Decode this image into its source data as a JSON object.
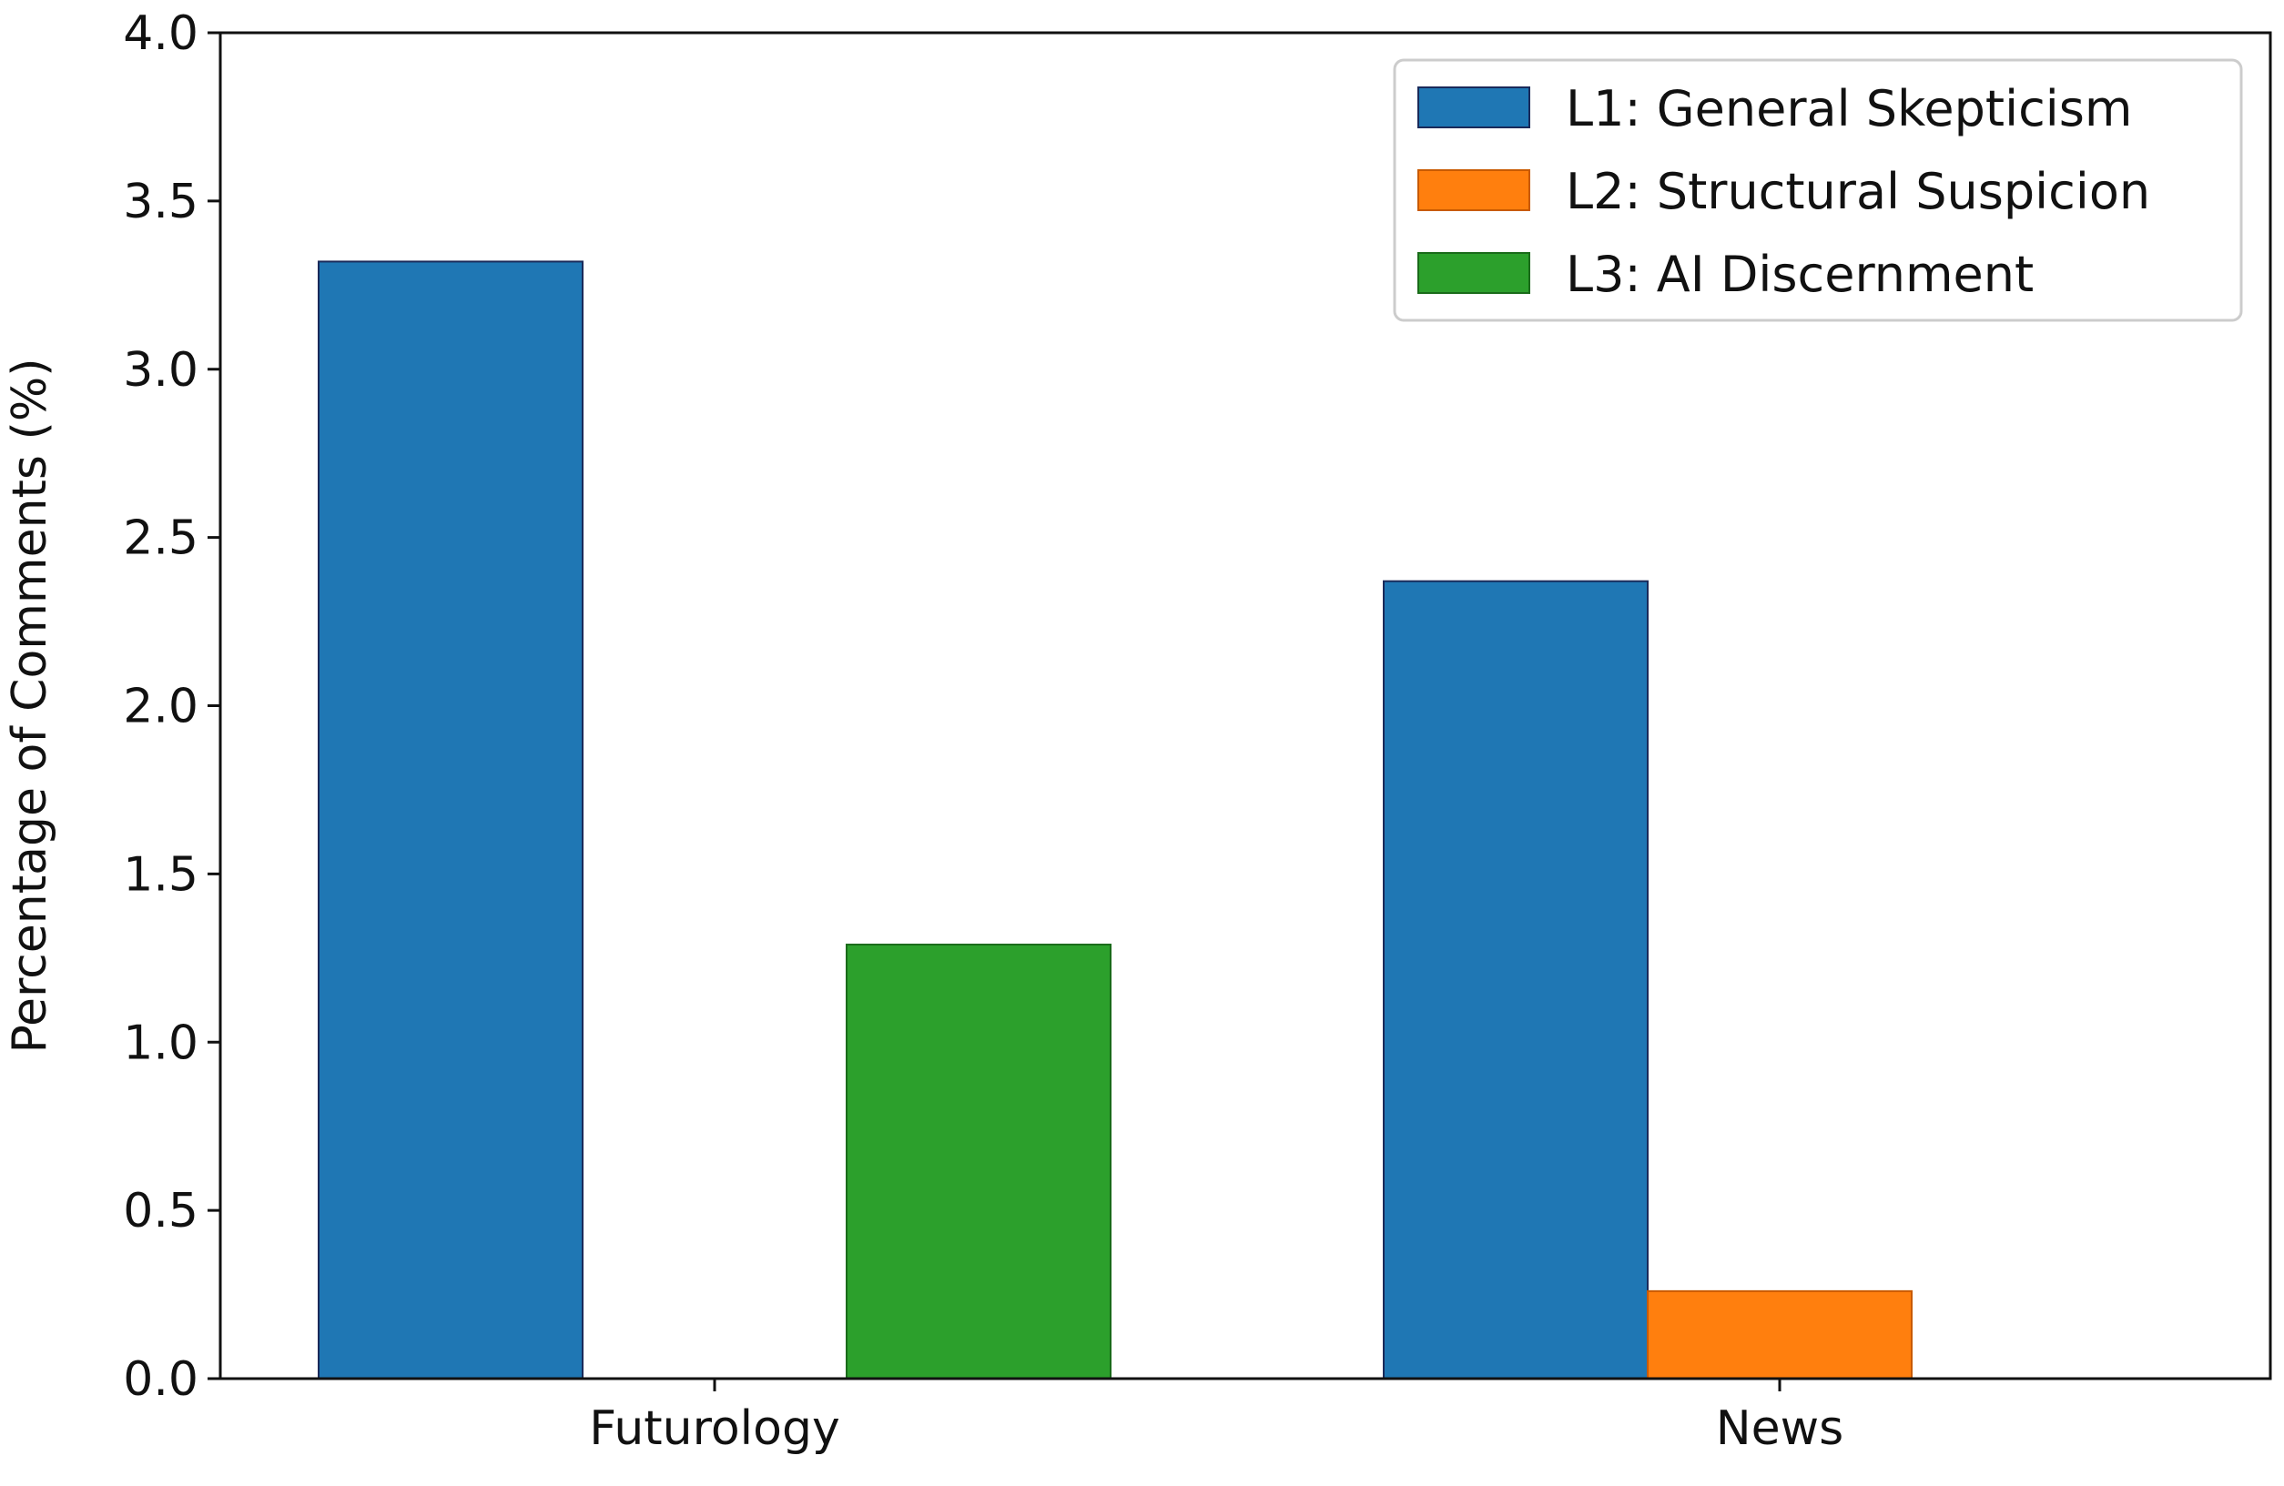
{
  "chart_data": {
    "type": "bar",
    "categories": [
      "Futurology",
      "News"
    ],
    "series": [
      {
        "name": "L1: General Skepticism",
        "color": "#1f77b4",
        "values": [
          3.32,
          2.37
        ]
      },
      {
        "name": "L2: Structural Suspicion",
        "color": "#ff7f0e",
        "values": [
          0.0,
          0.26
        ]
      },
      {
        "name": "L3: AI Discernment",
        "color": "#2ca02c",
        "values": [
          1.29,
          0.0
        ]
      }
    ],
    "xlabel": "",
    "ylabel": "Percentage of Comments (%)",
    "ylim": [
      0,
      4.0
    ],
    "yticks": [
      "0.0",
      "0.5",
      "1.0",
      "1.5",
      "2.0",
      "2.5",
      "3.0",
      "3.5",
      "4.0"
    ],
    "grid": false,
    "legend_position": "top-right"
  }
}
